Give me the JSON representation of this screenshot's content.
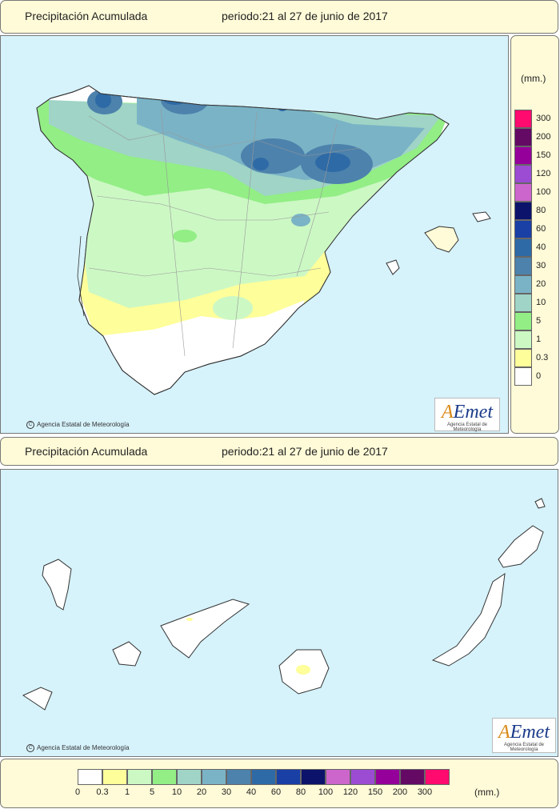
{
  "top_panel": {
    "title": "Precipitación Acumulada",
    "period": "periodo:21 al 27 de junio de 2017"
  },
  "bottom_panel": {
    "title": "Precipitación Acumulada",
    "period": "periodo:21 al 27 de junio de 2017"
  },
  "credit_text": "Agencia Estatal de Meteorología",
  "logo": {
    "word_a": "A",
    "word_rest": "Emet",
    "subtitle": "Agencia Estatal de Meteorología"
  },
  "legend": {
    "unit": "(mm.)",
    "unit_bottom": "(mm.)",
    "classes": [
      {
        "label": "0",
        "color": "#ffffff"
      },
      {
        "label": "0.3",
        "color": "#fefe9a"
      },
      {
        "label": "1",
        "color": "#ccf8c4"
      },
      {
        "label": "5",
        "color": "#92ee85"
      },
      {
        "label": "10",
        "color": "#9fd4c6"
      },
      {
        "label": "20",
        "color": "#7ab3c6"
      },
      {
        "label": "30",
        "color": "#4d82ac"
      },
      {
        "label": "40",
        "color": "#2e6aa6"
      },
      {
        "label": "60",
        "color": "#1a40a6"
      },
      {
        "label": "80",
        "color": "#0c136a"
      },
      {
        "label": "100",
        "color": "#cc66cc"
      },
      {
        "label": "120",
        "color": "#9b4cd2"
      },
      {
        "label": "150",
        "color": "#96009a"
      },
      {
        "label": "200",
        "color": "#640a65"
      },
      {
        "label": "300",
        "color": "#ff0a6e"
      }
    ]
  }
}
